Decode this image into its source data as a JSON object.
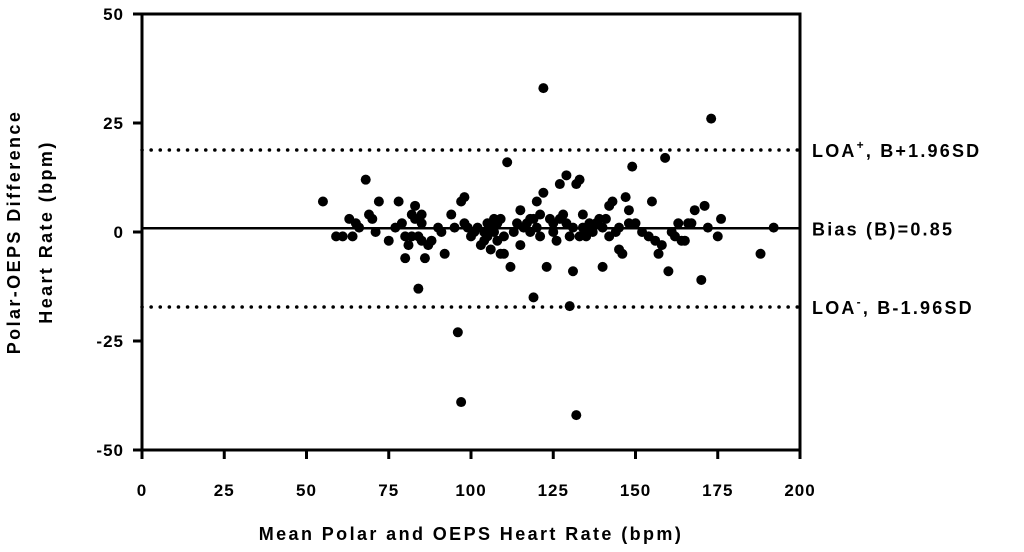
{
  "chart_data": {
    "type": "scatter",
    "title": "",
    "xlabel": "Mean Polar and OEPS Heart Rate (bpm)",
    "ylabel_lines": [
      "Polar-OEPS Difference",
      "Heart Rate (bpm)"
    ],
    "xlim": [
      0,
      200
    ],
    "ylim": [
      -50,
      50
    ],
    "xticks": [
      0,
      25,
      50,
      75,
      100,
      125,
      150,
      175,
      200
    ],
    "yticks": [
      50,
      25,
      0,
      -25,
      -50
    ],
    "grid": false,
    "reference_lines": [
      {
        "id": "loa-upper",
        "y": 18.8,
        "style": "dotted",
        "label_parts": [
          "LOA",
          "+",
          ", B+1.96SD"
        ]
      },
      {
        "id": "bias",
        "y": 0.85,
        "style": "solid",
        "label_parts": [
          "Bias (B)=0.85"
        ]
      },
      {
        "id": "loa-lower",
        "y": -17.2,
        "style": "dotted",
        "label_parts": [
          "LOA",
          "-",
          ", B-1.96SD"
        ]
      }
    ],
    "points": [
      [
        55,
        7
      ],
      [
        59,
        -1
      ],
      [
        61,
        -1
      ],
      [
        63,
        3
      ],
      [
        64,
        -1
      ],
      [
        65,
        2
      ],
      [
        66,
        1
      ],
      [
        68,
        12
      ],
      [
        69,
        4
      ],
      [
        70,
        3
      ],
      [
        71,
        0
      ],
      [
        72,
        7
      ],
      [
        75,
        -2
      ],
      [
        77,
        1
      ],
      [
        78,
        7
      ],
      [
        79,
        2
      ],
      [
        80,
        -6
      ],
      [
        80,
        -1
      ],
      [
        81,
        -3
      ],
      [
        82,
        4
      ],
      [
        82,
        -1
      ],
      [
        83,
        6
      ],
      [
        83,
        3
      ],
      [
        84,
        -1
      ],
      [
        84,
        -13
      ],
      [
        85,
        4
      ],
      [
        85,
        2
      ],
      [
        85,
        -2
      ],
      [
        86,
        -6
      ],
      [
        87,
        -3
      ],
      [
        88,
        -2
      ],
      [
        90,
        1
      ],
      [
        91,
        0
      ],
      [
        92,
        -5
      ],
      [
        94,
        4
      ],
      [
        95,
        1
      ],
      [
        96,
        -23
      ],
      [
        97,
        7
      ],
      [
        98,
        8
      ],
      [
        97,
        -39
      ],
      [
        98,
        2
      ],
      [
        99,
        1
      ],
      [
        100,
        -1
      ],
      [
        101,
        0
      ],
      [
        102,
        1
      ],
      [
        103,
        -3
      ],
      [
        104,
        0
      ],
      [
        104,
        -2
      ],
      [
        105,
        2
      ],
      [
        105,
        -1
      ],
      [
        106,
        1
      ],
      [
        106,
        -4
      ],
      [
        107,
        0
      ],
      [
        107,
        3
      ],
      [
        108,
        -2
      ],
      [
        108,
        2
      ],
      [
        109,
        -5
      ],
      [
        109,
        3
      ],
      [
        110,
        -1
      ],
      [
        110,
        -5
      ],
      [
        111,
        16
      ],
      [
        112,
        -8
      ],
      [
        113,
        0
      ],
      [
        114,
        2
      ],
      [
        115,
        -3
      ],
      [
        115,
        5
      ],
      [
        116,
        1
      ],
      [
        117,
        2
      ],
      [
        118,
        3
      ],
      [
        118,
        0
      ],
      [
        119,
        -15
      ],
      [
        119,
        3
      ],
      [
        120,
        1
      ],
      [
        120,
        7
      ],
      [
        121,
        -1
      ],
      [
        121,
        4
      ],
      [
        122,
        9
      ],
      [
        122,
        33
      ],
      [
        123,
        -8
      ],
      [
        124,
        3
      ],
      [
        125,
        0
      ],
      [
        125,
        2
      ],
      [
        126,
        -2
      ],
      [
        127,
        3
      ],
      [
        127,
        11
      ],
      [
        128,
        4
      ],
      [
        129,
        13
      ],
      [
        129,
        2
      ],
      [
        130,
        -17
      ],
      [
        130,
        -1
      ],
      [
        131,
        -9
      ],
      [
        131,
        1
      ],
      [
        132,
        -42
      ],
      [
        132,
        11
      ],
      [
        133,
        -1
      ],
      [
        133,
        12
      ],
      [
        134,
        1
      ],
      [
        134,
        4
      ],
      [
        135,
        0
      ],
      [
        135,
        -1
      ],
      [
        136,
        2
      ],
      [
        137,
        0
      ],
      [
        138,
        2
      ],
      [
        139,
        3
      ],
      [
        140,
        1
      ],
      [
        140,
        -8
      ],
      [
        141,
        3
      ],
      [
        142,
        6
      ],
      [
        142,
        -1
      ],
      [
        143,
        7
      ],
      [
        144,
        0
      ],
      [
        145,
        1
      ],
      [
        145,
        -4
      ],
      [
        146,
        -5
      ],
      [
        147,
        8
      ],
      [
        148,
        2
      ],
      [
        148,
        5
      ],
      [
        149,
        15
      ],
      [
        150,
        2
      ],
      [
        152,
        0
      ],
      [
        154,
        -1
      ],
      [
        155,
        7
      ],
      [
        156,
        -2
      ],
      [
        157,
        -5
      ],
      [
        158,
        -3
      ],
      [
        159,
        17
      ],
      [
        160,
        -9
      ],
      [
        161,
        0
      ],
      [
        162,
        -1
      ],
      [
        163,
        2
      ],
      [
        164,
        -2
      ],
      [
        165,
        -2
      ],
      [
        166,
        2
      ],
      [
        167,
        2
      ],
      [
        168,
        5
      ],
      [
        170,
        -11
      ],
      [
        171,
        6
      ],
      [
        172,
        1
      ],
      [
        173,
        26
      ],
      [
        175,
        -1
      ],
      [
        176,
        3
      ],
      [
        188,
        -5
      ],
      [
        192,
        1
      ]
    ]
  }
}
